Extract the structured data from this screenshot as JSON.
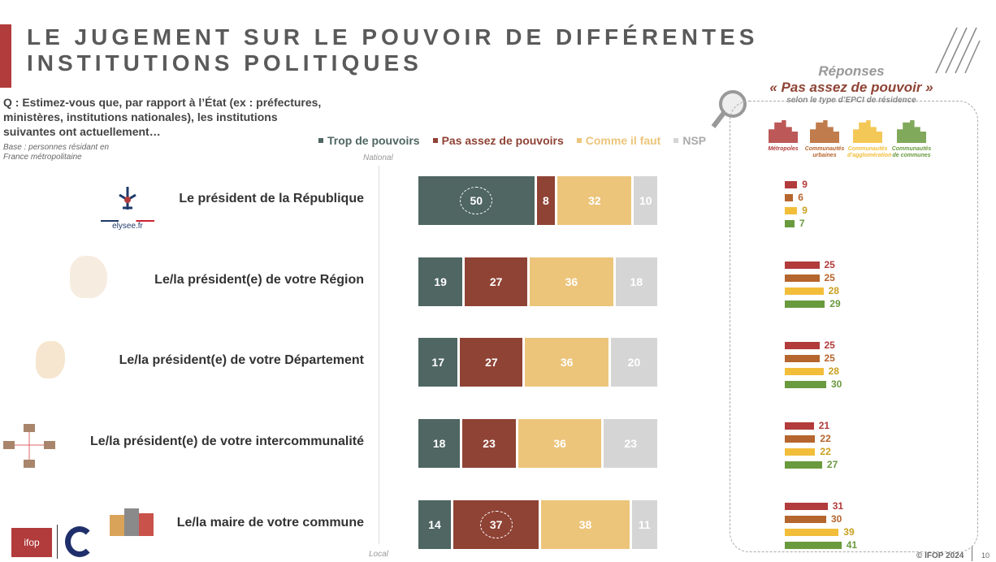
{
  "title_line1": "LE JUGEMENT SUR LE POUVOIR DE DIFFÉRENTES",
  "title_line2": "INSTITUTIONS POLITIQUES",
  "question": "Q : Estimez-vous que, par rapport à l’État (ex : préfectures, ministères, institutions nationales), les institutions suivantes ont actuellement…",
  "base": "Base : personnes résidant en France métropolitaine",
  "legend": [
    {
      "label": "Trop de pouvoirs",
      "color": "#4f6662"
    },
    {
      "label": "Pas assez de pouvoirs",
      "color": "#8f4335"
    },
    {
      "label": "Comme il faut",
      "color": "#ecc57b"
    },
    {
      "label": "NSP",
      "color": "#d5d5d5"
    }
  ],
  "axis": {
    "top": "National",
    "bottom": "Local"
  },
  "elysee_logo": "elysee.fr",
  "rows": [
    {
      "label": "Le président de la République",
      "values": [
        50,
        8,
        32,
        10
      ],
      "highlight": 0
    },
    {
      "label": "Le/la président(e) de votre Région",
      "values": [
        19,
        27,
        36,
        18
      ],
      "highlight": -1
    },
    {
      "label": "Le/la président(e) de votre Département",
      "values": [
        17,
        27,
        36,
        20
      ],
      "highlight": -1
    },
    {
      "label": "Le/la président(e) de votre intercommunalité",
      "values": [
        18,
        23,
        36,
        23
      ],
      "highlight": -1
    },
    {
      "label": "Le/la maire de votre commune",
      "values": [
        14,
        37,
        38,
        11
      ],
      "highlight": 1
    }
  ],
  "panel": {
    "title1": "Réponses",
    "title2": "« Pas assez de pouvoir »",
    "subtitle": "selon le type d’EPCI de résidence",
    "categories": [
      {
        "label": "Métropoles",
        "color": "#b23b3b"
      },
      {
        "label": "Communautés urbaines",
        "color": "#b5652e"
      },
      {
        "label": "Communautés d’agglomération",
        "color": "#f2be3a"
      },
      {
        "label": "Communautés de communes",
        "color": "#6a9a3e"
      }
    ],
    "values": [
      [
        9,
        6,
        9,
        7
      ],
      [
        25,
        25,
        28,
        29
      ],
      [
        25,
        25,
        28,
        30
      ],
      [
        21,
        22,
        22,
        27
      ],
      [
        31,
        30,
        39,
        41
      ]
    ]
  },
  "footer": "© IFOP 2024",
  "page": "10",
  "ifop_logo": "ifop"
}
